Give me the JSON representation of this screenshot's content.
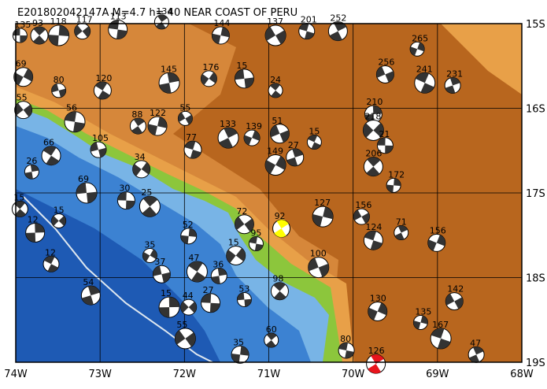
{
  "map": {
    "title": "E201802042147A M=4.7 h= 40 NEAR COAST OF PERU",
    "xlim": [
      -74,
      -68
    ],
    "ylim": [
      -19,
      -15
    ],
    "xticks": [
      {
        "value": -74,
        "label": "74W"
      },
      {
        "value": -73,
        "label": "73W"
      },
      {
        "value": -72,
        "label": "72W"
      },
      {
        "value": -71,
        "label": "71W"
      },
      {
        "value": -70,
        "label": "70W"
      },
      {
        "value": -69,
        "label": "69W"
      },
      {
        "value": -68,
        "label": "68W"
      }
    ],
    "yticks": [
      {
        "value": -15,
        "label": "15S"
      },
      {
        "value": -16,
        "label": "16S"
      },
      {
        "value": -17,
        "label": "17S"
      },
      {
        "value": -18,
        "label": "18S"
      },
      {
        "value": -19,
        "label": "19S"
      }
    ],
    "grid": true,
    "events": [
      {
        "lon": -73.95,
        "lat": -15.14,
        "depth": 135
      },
      {
        "lon": -73.72,
        "lat": -15.14,
        "depth": 93
      },
      {
        "lon": -73.49,
        "lat": -15.14,
        "depth": 118
      },
      {
        "lon": -73.21,
        "lat": -15.09,
        "depth": 117
      },
      {
        "lon": -72.79,
        "lat": -15.07,
        "depth": 113
      },
      {
        "lon": -72.27,
        "lat": -14.98,
        "depth": 134
      },
      {
        "lon": -71.57,
        "lat": -15.14,
        "depth": 144
      },
      {
        "lon": -70.92,
        "lat": -15.14,
        "depth": 137
      },
      {
        "lon": -70.55,
        "lat": -15.09,
        "depth": 201
      },
      {
        "lon": -70.18,
        "lat": -15.09,
        "depth": 252
      },
      {
        "lon": -69.24,
        "lat": -15.3,
        "depth": 265
      },
      {
        "lon": -69.62,
        "lat": -15.6,
        "depth": 256
      },
      {
        "lon": -69.15,
        "lat": -15.7,
        "depth": 241
      },
      {
        "lon": -68.82,
        "lat": -15.73,
        "depth": 231
      },
      {
        "lon": -73.91,
        "lat": -15.63,
        "depth": 69
      },
      {
        "lon": -73.49,
        "lat": -15.79,
        "depth": 80
      },
      {
        "lon": -72.97,
        "lat": -15.79,
        "depth": 120
      },
      {
        "lon": -72.18,
        "lat": -15.7,
        "depth": 145
      },
      {
        "lon": -71.71,
        "lat": -15.65,
        "depth": 176
      },
      {
        "lon": -71.29,
        "lat": -15.65,
        "depth": 15
      },
      {
        "lon": -70.92,
        "lat": -15.79,
        "depth": 24
      },
      {
        "lon": -69.76,
        "lat": -16.07,
        "depth": 210
      },
      {
        "lon": -69.76,
        "lat": -16.26,
        "depth": 218
      },
      {
        "lon": -69.62,
        "lat": -16.44,
        "depth": 21
      },
      {
        "lon": -69.76,
        "lat": -16.69,
        "depth": 206
      },
      {
        "lon": -69.52,
        "lat": -16.91,
        "depth": 172
      },
      {
        "lon": -73.91,
        "lat": -16.02,
        "depth": 55
      },
      {
        "lon": -73.3,
        "lat": -16.16,
        "depth": 56
      },
      {
        "lon": -72.55,
        "lat": -16.21,
        "depth": 88
      },
      {
        "lon": -72.32,
        "lat": -16.21,
        "depth": 122
      },
      {
        "lon": -71.99,
        "lat": -16.12,
        "depth": 55
      },
      {
        "lon": -71.9,
        "lat": -16.49,
        "depth": 77
      },
      {
        "lon": -71.48,
        "lat": -16.35,
        "depth": 133
      },
      {
        "lon": -71.2,
        "lat": -16.35,
        "depth": 139
      },
      {
        "lon": -70.87,
        "lat": -16.3,
        "depth": 51
      },
      {
        "lon": -70.46,
        "lat": -16.4,
        "depth": 15
      },
      {
        "lon": -70.69,
        "lat": -16.58,
        "depth": 27
      },
      {
        "lon": -70.92,
        "lat": -16.67,
        "depth": 149
      },
      {
        "lon": -73.02,
        "lat": -16.49,
        "depth": 105
      },
      {
        "lon": -73.58,
        "lat": -16.56,
        "depth": 66
      },
      {
        "lon": -73.81,
        "lat": -16.75,
        "depth": 26
      },
      {
        "lon": -72.51,
        "lat": -16.72,
        "depth": 34
      },
      {
        "lon": -73.16,
        "lat": -17.0,
        "depth": 69
      },
      {
        "lon": -73.95,
        "lat": -17.19,
        "depth": 15
      },
      {
        "lon": -73.77,
        "lat": -17.47,
        "depth": 12
      },
      {
        "lon": -73.49,
        "lat": -17.33,
        "depth": 15
      },
      {
        "lon": -72.69,
        "lat": -17.09,
        "depth": 30
      },
      {
        "lon": -72.41,
        "lat": -17.16,
        "depth": 25
      },
      {
        "lon": -71.95,
        "lat": -17.51,
        "depth": 52
      },
      {
        "lon": -71.29,
        "lat": -17.37,
        "depth": 72
      },
      {
        "lon": -71.15,
        "lat": -17.6,
        "depth": 95
      },
      {
        "lon": -70.85,
        "lat": -17.42,
        "depth": 92,
        "color": "#ffff00"
      },
      {
        "lon": -70.36,
        "lat": -17.28,
        "depth": 127
      },
      {
        "lon": -69.9,
        "lat": -17.28,
        "depth": 156
      },
      {
        "lon": -69.76,
        "lat": -17.56,
        "depth": 124
      },
      {
        "lon": -69.43,
        "lat": -17.47,
        "depth": 71
      },
      {
        "lon": -69.01,
        "lat": -17.59,
        "depth": 156
      },
      {
        "lon": -70.41,
        "lat": -17.88,
        "depth": 100
      },
      {
        "lon": -73.58,
        "lat": -17.84,
        "depth": 12
      },
      {
        "lon": -73.11,
        "lat": -18.21,
        "depth": 54
      },
      {
        "lon": -72.41,
        "lat": -17.74,
        "depth": 35
      },
      {
        "lon": -72.27,
        "lat": -17.96,
        "depth": 37
      },
      {
        "lon": -71.85,
        "lat": -17.93,
        "depth": 47
      },
      {
        "lon": -71.59,
        "lat": -17.98,
        "depth": 36
      },
      {
        "lon": -71.39,
        "lat": -17.74,
        "depth": 15
      },
      {
        "lon": -71.29,
        "lat": -18.26,
        "depth": 53
      },
      {
        "lon": -70.87,
        "lat": -18.16,
        "depth": 98
      },
      {
        "lon": -72.18,
        "lat": -18.35,
        "depth": 15
      },
      {
        "lon": -71.95,
        "lat": -18.35,
        "depth": 44
      },
      {
        "lon": -71.69,
        "lat": -18.3,
        "depth": 27
      },
      {
        "lon": -70.97,
        "lat": -18.74,
        "depth": 60
      },
      {
        "lon": -71.34,
        "lat": -18.91,
        "depth": 35
      },
      {
        "lon": -71.99,
        "lat": -18.72,
        "depth": 55
      },
      {
        "lon": -70.08,
        "lat": -18.86,
        "depth": 80
      },
      {
        "lon": -69.73,
        "lat": -19.02,
        "depth": 126,
        "color": "#e8141c"
      },
      {
        "lon": -69.2,
        "lat": -18.53,
        "depth": 135
      },
      {
        "lon": -68.8,
        "lat": -18.28,
        "depth": 142
      },
      {
        "lon": -68.96,
        "lat": -18.72,
        "depth": 167
      },
      {
        "lon": -68.54,
        "lat": -18.91,
        "depth": 47
      },
      {
        "lon": -69.71,
        "lat": -18.4,
        "depth": 130
      }
    ]
  }
}
